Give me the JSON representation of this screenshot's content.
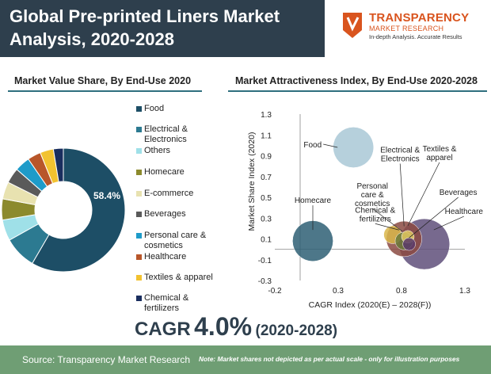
{
  "header": {
    "title": "Global Pre-printed Liners Market Analysis, 2020-2028"
  },
  "brand": {
    "name": "TRANSPARENCY",
    "sub": "MARKET RESEARCH",
    "tagline": "In-depth Analysis. Accurate Results",
    "color": "#d9541e"
  },
  "left_section": {
    "title": "Market Value Share, By End-Use 2020"
  },
  "right_section": {
    "title": "Market Attractiveness Index, By End-Use 2020-2028"
  },
  "cagr": {
    "label": "CAGR",
    "value": "4.0%",
    "period": "(2020-2028)"
  },
  "footer": {
    "source": "Source: Transparency Market Research",
    "note": "Note: Market shares not depicted as per actual scale - only for illustration purposes"
  },
  "chart_data": [
    {
      "type": "pie",
      "donut": true,
      "title": "Market Value Share, By End-Use 2020",
      "data_labels": [
        "58.4%"
      ],
      "slices": [
        {
          "name": "Food",
          "value": 58.4,
          "color": "#1d4e66",
          "label": "Food"
        },
        {
          "name": "Electrical & Electronics",
          "value": 8.5,
          "color": "#2c7a91",
          "label": "Electrical &\nElectronics"
        },
        {
          "name": "Others",
          "value": 5.5,
          "color": "#9fe0e8",
          "label": "Others"
        },
        {
          "name": "Homecare",
          "value": 5.5,
          "color": "#8c8a2d",
          "label": "Homecare"
        },
        {
          "name": "E-commerce",
          "value": 4.5,
          "color": "#e8e2b0",
          "label": "E-commerce"
        },
        {
          "name": "Beverages",
          "value": 4.0,
          "color": "#5a5a5a",
          "label": "Beverages"
        },
        {
          "name": "Personal care & cosmetics",
          "value": 4.0,
          "color": "#1e9bc9",
          "label": "Personal care &\ncosmetics"
        },
        {
          "name": "Healthcare",
          "value": 3.5,
          "color": "#b8562a",
          "label": "Healthcare"
        },
        {
          "name": "Textiles & apparel",
          "value": 3.5,
          "color": "#f2c230",
          "label": "Textiles & apparel"
        },
        {
          "name": "Chemical & fertilizers",
          "value": 2.6,
          "color": "#1a2e5e",
          "label": "Chemical &\nfertilizers"
        }
      ]
    },
    {
      "type": "scatter",
      "title": "Market Attractiveness Index, By End-Use 2020-2028",
      "xlabel": "CAGR Index (2020(E) – 2028(F))",
      "ylabel": "Market Share Index (2020)",
      "xlim": [
        -0.2,
        1.3
      ],
      "ylim": [
        -0.3,
        1.3
      ],
      "xticks": [
        -0.2,
        0.3,
        0.8,
        1.3
      ],
      "xtick_labels": [
        "-0.2",
        "0.3",
        "0.8",
        "1.3"
      ],
      "yticks": [
        -0.3,
        -0.1,
        0.1,
        0.3,
        0.5,
        0.7,
        0.9,
        1.1,
        1.3
      ],
      "ytick_labels": [
        "-0.3",
        "-0.1",
        "0.1",
        "0.3",
        "0.5",
        "0.7",
        "0.9",
        "1.1",
        "1.3"
      ],
      "points": [
        {
          "label": "Food",
          "x": 0.42,
          "y": 0.98,
          "size": 0.16,
          "color": "#a9c8d6"
        },
        {
          "label": "Homecare",
          "x": 0.1,
          "y": 0.08,
          "size": 0.16,
          "color": "#2e5f74"
        },
        {
          "label": "Chemical &\nfertilizers",
          "x": 0.73,
          "y": 0.14,
          "size": 0.07,
          "color": "#d9b64a"
        },
        {
          "label": "Personal\ncare &\ncosmetics",
          "x": 0.82,
          "y": 0.08,
          "size": 0.07,
          "color": "#6b7a3a"
        },
        {
          "label": "Electrical &\nElectronics",
          "x": 0.82,
          "y": 0.1,
          "size": 0.14,
          "color": "#8b4a42"
        },
        {
          "label": "Textiles &\napparel",
          "x": 0.85,
          "y": 0.12,
          "size": 0.05,
          "color": "#e0c860"
        },
        {
          "label": "Beverages",
          "x": 0.86,
          "y": 0.05,
          "size": 0.05,
          "color": "#5a3a6a"
        },
        {
          "label": "Healthcare",
          "x": 0.98,
          "y": 0.05,
          "size": 0.2,
          "color": "#5f4f7a"
        }
      ]
    }
  ]
}
